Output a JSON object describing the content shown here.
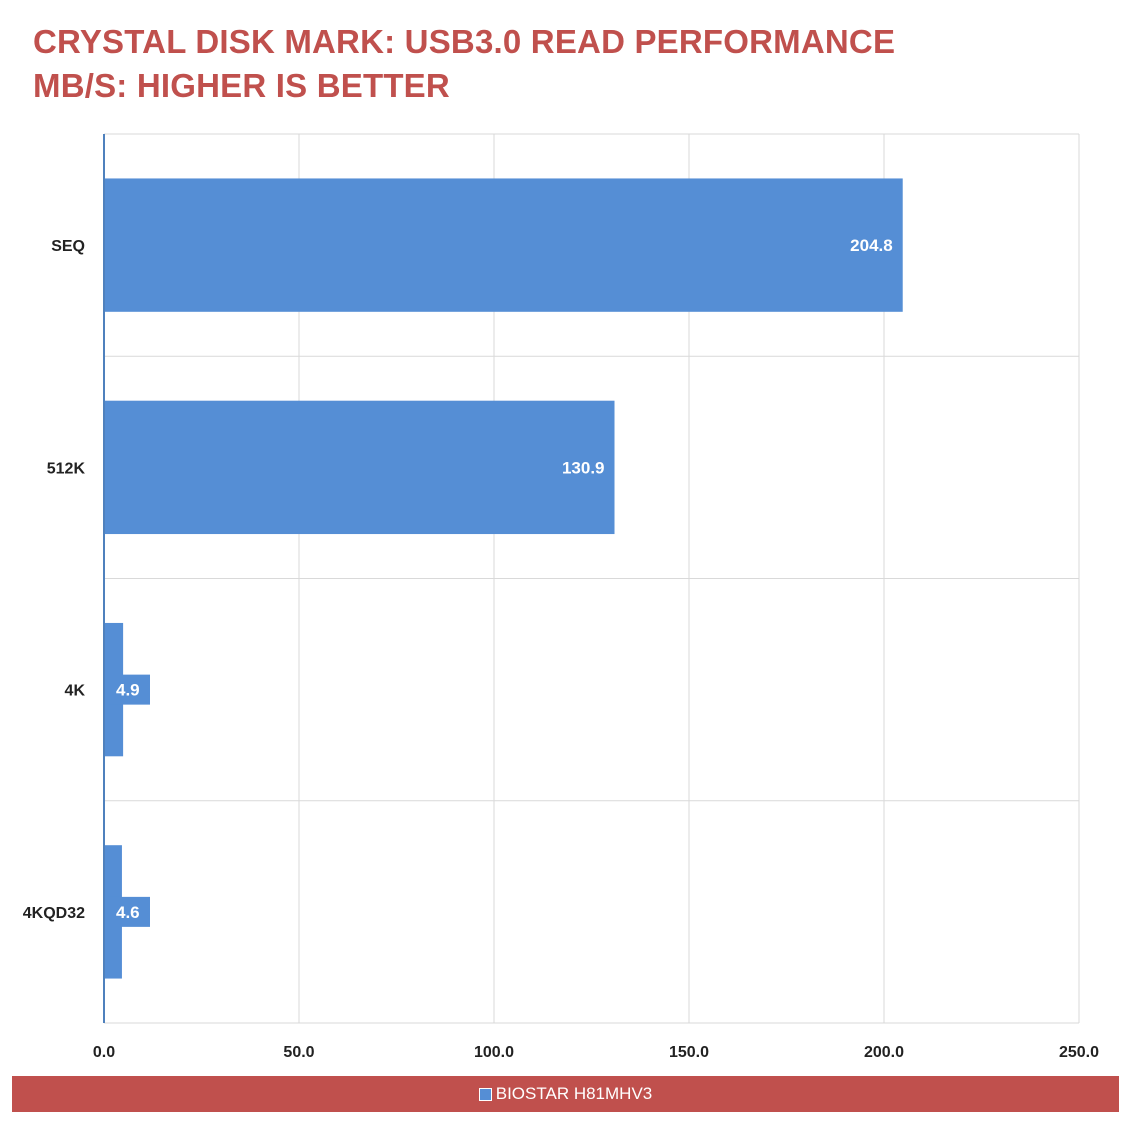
{
  "chart_data": {
    "type": "bar",
    "orientation": "horizontal",
    "title": [
      "CRYSTAL DISK MARK: USB3.0 READ PERFORMANCE",
      "MB/S: HIGHER IS BETTER"
    ],
    "categories": [
      "SEQ",
      "512K",
      "4K",
      "4KQD32"
    ],
    "series": [
      {
        "name": "BIOSTAR H81MHV3",
        "values": [
          204.8,
          130.9,
          4.9,
          4.6
        ]
      }
    ],
    "data_labels": [
      "204.8",
      "130.9",
      "4.9",
      "4.6"
    ],
    "xlim": [
      0,
      250
    ],
    "x_ticks": [
      "0.0",
      "50.0",
      "100.0",
      "150.0",
      "200.0",
      "250.0"
    ],
    "grid": true,
    "legend_position": "bottom",
    "colors": {
      "bar": "#558ed5",
      "title": "#c0504d",
      "legend_background": "#c0504d",
      "grid": "#d9d9d9",
      "axis": "#4f81bd"
    }
  }
}
